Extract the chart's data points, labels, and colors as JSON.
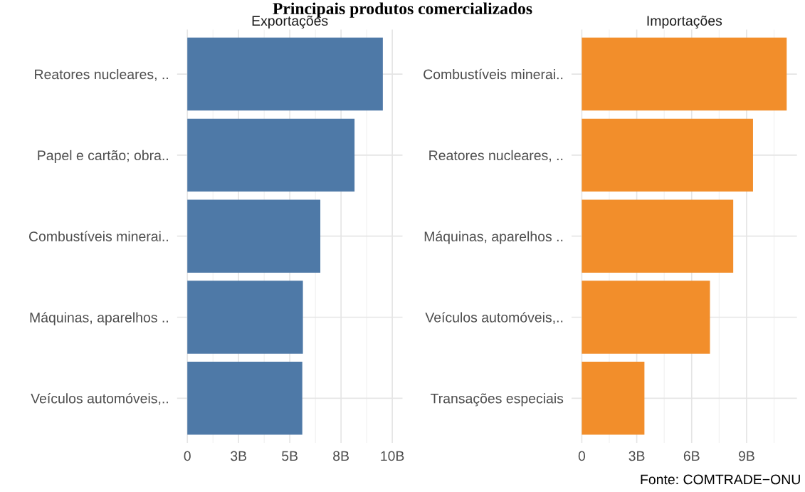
{
  "chart_data": [
    {
      "type": "bar",
      "orientation": "horizontal",
      "title": "Principais produtos comercializados",
      "subtitle": "Exportações",
      "categories": [
        "Reatores nucleares, ..",
        "Papel e cartão; obra..",
        "Combustíveis minerai..",
        "Máquinas, aparelhos ..",
        "Veículos automóveis,.."
      ],
      "values": [
        9.54,
        8.16,
        6.49,
        5.64,
        5.61
      ],
      "color": "#4e79a7",
      "xlim": [
        -0.5,
        10.5
      ],
      "xticks": [
        0,
        {
          "value": 2.5,
          "label": "3B"
        },
        {
          "value": 5,
          "label": "5B"
        },
        {
          "value": 7.5,
          "label": "8B"
        },
        {
          "value": 10,
          "label": "10B"
        }
      ],
      "grid": true
    },
    {
      "type": "bar",
      "orientation": "horizontal",
      "subtitle": "Importações",
      "categories": [
        "Combustíveis minerai..",
        "Reatores nucleares, ..",
        "Máquinas, aparelhos ..",
        "Veículos automóveis,..",
        "Transações especiais"
      ],
      "values": [
        11.19,
        9.35,
        8.27,
        7.0,
        3.42
      ],
      "color": "#f28e2b",
      "xlim": [
        -0.56,
        11.75
      ],
      "xticks": [
        0,
        {
          "value": 3,
          "label": "3B"
        },
        {
          "value": 6,
          "label": "6B"
        },
        {
          "value": 9,
          "label": "9B"
        }
      ],
      "grid": true,
      "annotations": [
        "Fonte: COMTRADE−ONU"
      ]
    }
  ]
}
